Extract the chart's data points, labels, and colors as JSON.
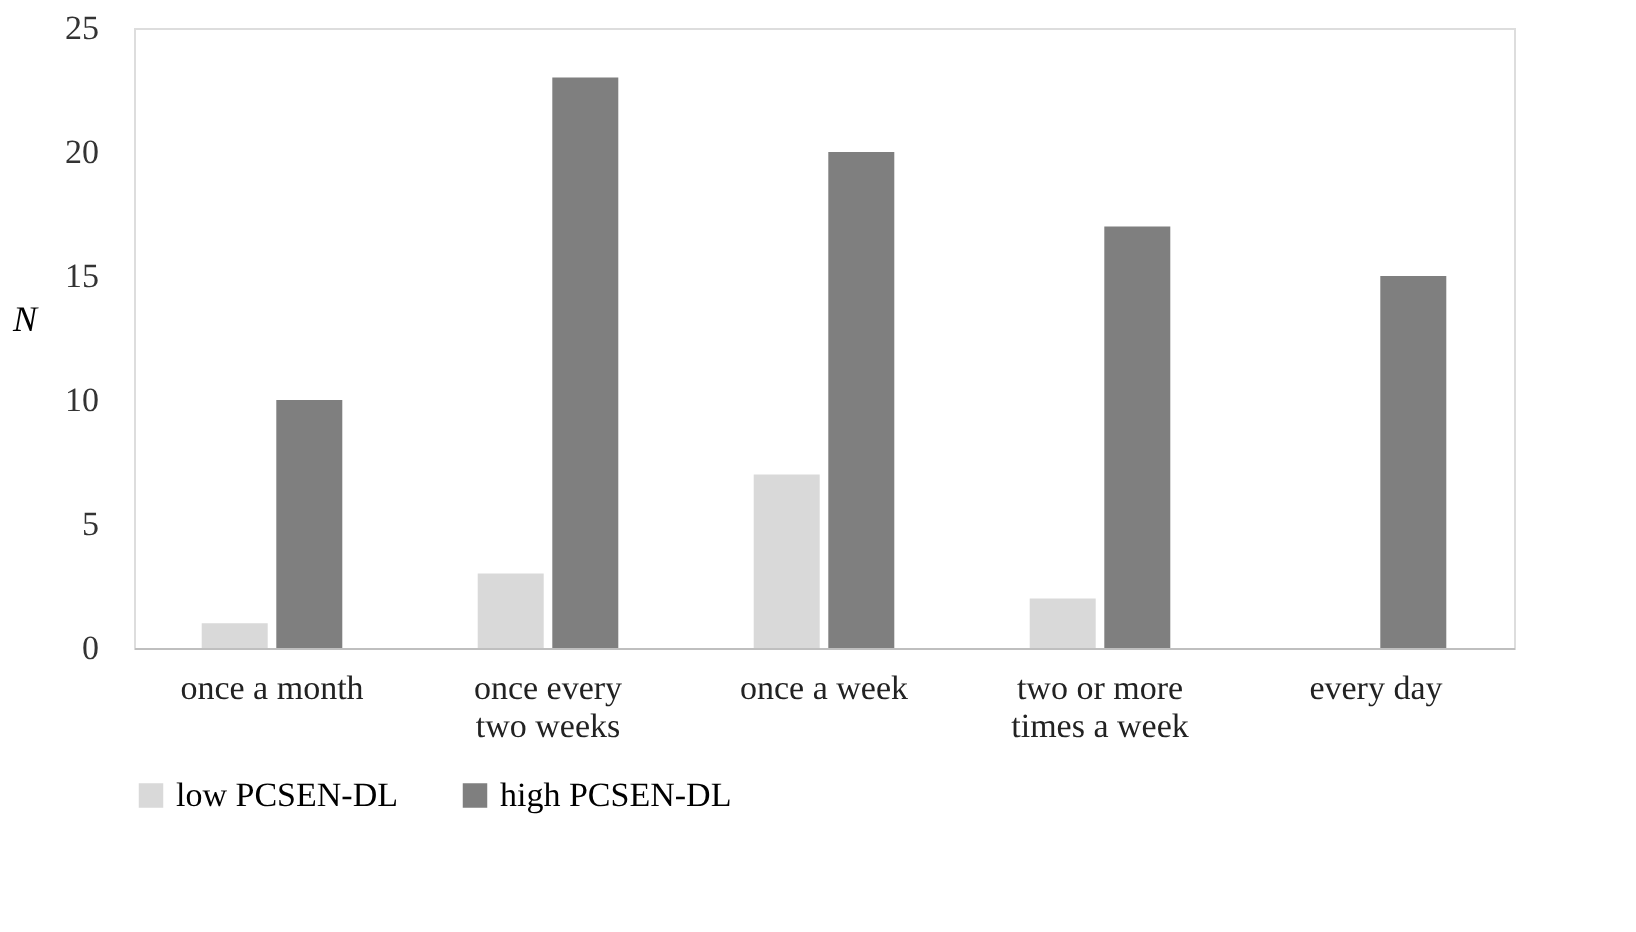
{
  "chart_data": {
    "type": "bar",
    "ylabel": "N",
    "categories": [
      "once a month",
      "once every two weeks",
      "once a week",
      "two or more times a week",
      "every day"
    ],
    "series": [
      {
        "name": "low PCSEN-DL",
        "color": "#d9d9d9",
        "values": [
          1,
          3,
          7,
          2,
          0
        ]
      },
      {
        "name": "high PCSEN-DL",
        "color": "#7f7f7f",
        "values": [
          10,
          23,
          20,
          17,
          15
        ]
      }
    ],
    "ylim": [
      0,
      25
    ],
    "yticks": [
      0,
      5,
      10,
      15,
      20,
      25
    ],
    "grid": false,
    "legend": "bottom"
  }
}
